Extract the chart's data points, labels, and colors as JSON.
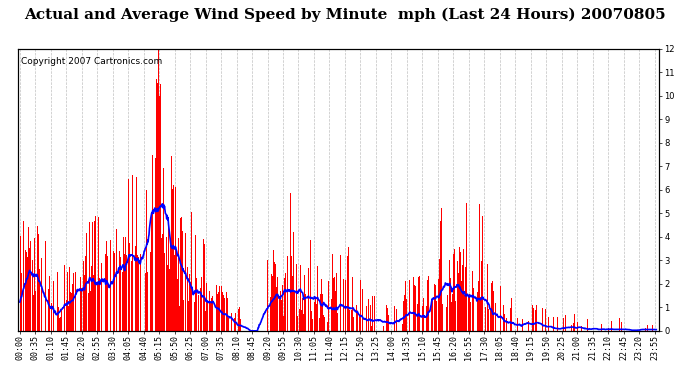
{
  "title": "Actual and Average Wind Speed by Minute  mph (Last 24 Hours) 20070805",
  "copyright": "Copyright 2007 Cartronics.com",
  "ylim": [
    0.0,
    12.0
  ],
  "yticks": [
    0.0,
    1.0,
    2.0,
    3.0,
    4.0,
    5.0,
    6.0,
    7.0,
    8.0,
    9.0,
    10.0,
    11.0,
    12.0
  ],
  "bar_color": "#ff0000",
  "line_color": "#0000ff",
  "bg_color": "#ffffff",
  "grid_color": "#b0b0b0",
  "title_fontsize": 11,
  "copyright_fontsize": 6.5,
  "tick_labelsize": 6.0,
  "n_minutes": 1440,
  "figwidth": 6.9,
  "figheight": 3.75,
  "dpi": 100
}
